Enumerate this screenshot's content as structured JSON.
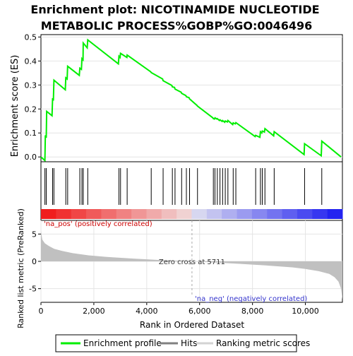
{
  "chart_data": [
    {
      "type": "line",
      "title_lines": [
        "Enrichment plot: NICOTINAMIDE NUCLEOTIDE",
        "METABOLIC PROCESS%GOBP%GO:0046496"
      ],
      "ylabel": "Enrichment score (ES)",
      "ylim": [
        -0.02,
        0.51
      ],
      "y_ticks": [
        0.0,
        0.1,
        0.2,
        0.3,
        0.4,
        0.5
      ],
      "y_tick_labels": [
        "0.0",
        "0.1",
        "0.2",
        "0.3",
        "0.4",
        "0.5"
      ],
      "xlim": [
        0,
        11400
      ],
      "grid": true,
      "series": [
        {
          "name": "Enrichment profile",
          "color": "#00ee00",
          "x": [
            0,
            150,
            165,
            200,
            215,
            420,
            440,
            470,
            490,
            920,
            940,
            990,
            1010,
            1450,
            1470,
            1530,
            1550,
            1590,
            1600,
            1750,
            1770,
            2930,
            2950,
            2990,
            3010,
            3250,
            3260,
            4150,
            4170,
            4600,
            4620,
            4950,
            4970,
            5050,
            5070,
            5300,
            5320,
            5480,
            5500,
            5600,
            5620,
            5900,
            5920,
            6500,
            6520,
            6560,
            6580,
            6650,
            6670,
            6750,
            6770,
            6850,
            6870,
            6950,
            6970,
            7050,
            7070,
            7250,
            7270,
            7350,
            7370,
            8100,
            8120,
            8280,
            8300,
            8350,
            8370,
            8450,
            8470,
            8800,
            8820,
            9950,
            9970,
            10600,
            10620,
            11350
          ],
          "y": [
            0.0,
            -0.015,
            0.09,
            0.08,
            0.19,
            0.172,
            0.245,
            0.235,
            0.32,
            0.28,
            0.33,
            0.325,
            0.378,
            0.34,
            0.37,
            0.365,
            0.41,
            0.405,
            0.475,
            0.455,
            0.488,
            0.388,
            0.42,
            0.415,
            0.432,
            0.415,
            0.425,
            0.355,
            0.352,
            0.325,
            0.318,
            0.298,
            0.292,
            0.29,
            0.283,
            0.27,
            0.265,
            0.256,
            0.251,
            0.247,
            0.242,
            0.215,
            0.212,
            0.163,
            0.16,
            0.158,
            0.163,
            0.158,
            0.16,
            0.152,
            0.155,
            0.148,
            0.152,
            0.145,
            0.15,
            0.146,
            0.152,
            0.135,
            0.142,
            0.138,
            0.143,
            0.085,
            0.09,
            0.082,
            0.105,
            0.1,
            0.108,
            0.104,
            0.118,
            0.088,
            0.105,
            0.01,
            0.055,
            0.005,
            0.066,
            0.0
          ]
        }
      ]
    },
    {
      "type": "hits",
      "xlim": [
        0,
        11400
      ],
      "positions": [
        150,
        200,
        440,
        490,
        940,
        1010,
        1470,
        1550,
        1600,
        1770,
        2950,
        3010,
        3260,
        4170,
        4620,
        4970,
        5070,
        5320,
        5500,
        5620,
        5920,
        6520,
        6580,
        6670,
        6770,
        6870,
        6970,
        7070,
        7270,
        7370,
        8120,
        8300,
        8370,
        8470,
        8820,
        9970,
        10620
      ]
    },
    {
      "type": "area",
      "xlabel": "Rank in Ordered Dataset",
      "ylabel": "Ranked list metric (PreRanked)",
      "ylim": [
        -7.5,
        7.5
      ],
      "y_ticks": [
        -5,
        0,
        5
      ],
      "y_tick_labels": [
        "-5",
        "0",
        "5"
      ],
      "xlim": [
        0,
        11400
      ],
      "x_ticks": [
        0,
        2000,
        4000,
        6000,
        8000,
        10000
      ],
      "x_tick_labels": [
        "0",
        "2,000",
        "4,000",
        "6,000",
        "8,000",
        "10,000"
      ],
      "zero_cross": 5711,
      "zero_cross_label": "Zero cross at 5711",
      "pos_label": "'na_pos' (positively correlated)",
      "neg_label": "'na_neg' (negatively correlated)",
      "metric_x": [
        0,
        50,
        150,
        300,
        500,
        800,
        1200,
        1800,
        2500,
        3500,
        4500,
        5711,
        6500,
        7500,
        8500,
        9500,
        10000,
        10500,
        10900,
        11100,
        11250,
        11350,
        11400
      ],
      "metric_y": [
        5.6,
        4.0,
        3.3,
        2.8,
        2.3,
        1.9,
        1.5,
        1.1,
        0.8,
        0.5,
        0.25,
        0.0,
        -0.2,
        -0.45,
        -0.75,
        -1.1,
        -1.4,
        -1.8,
        -2.3,
        -2.9,
        -3.7,
        -5.0,
        -7.0
      ],
      "fill_color": "#c0c0c0"
    }
  ],
  "legend": {
    "items": [
      {
        "label": "Enrichment profile",
        "color": "#00ee00"
      },
      {
        "label": "Hits",
        "color": "#808080"
      },
      {
        "label": "Ranking metric scores",
        "color": "#d3d3d3"
      }
    ]
  }
}
